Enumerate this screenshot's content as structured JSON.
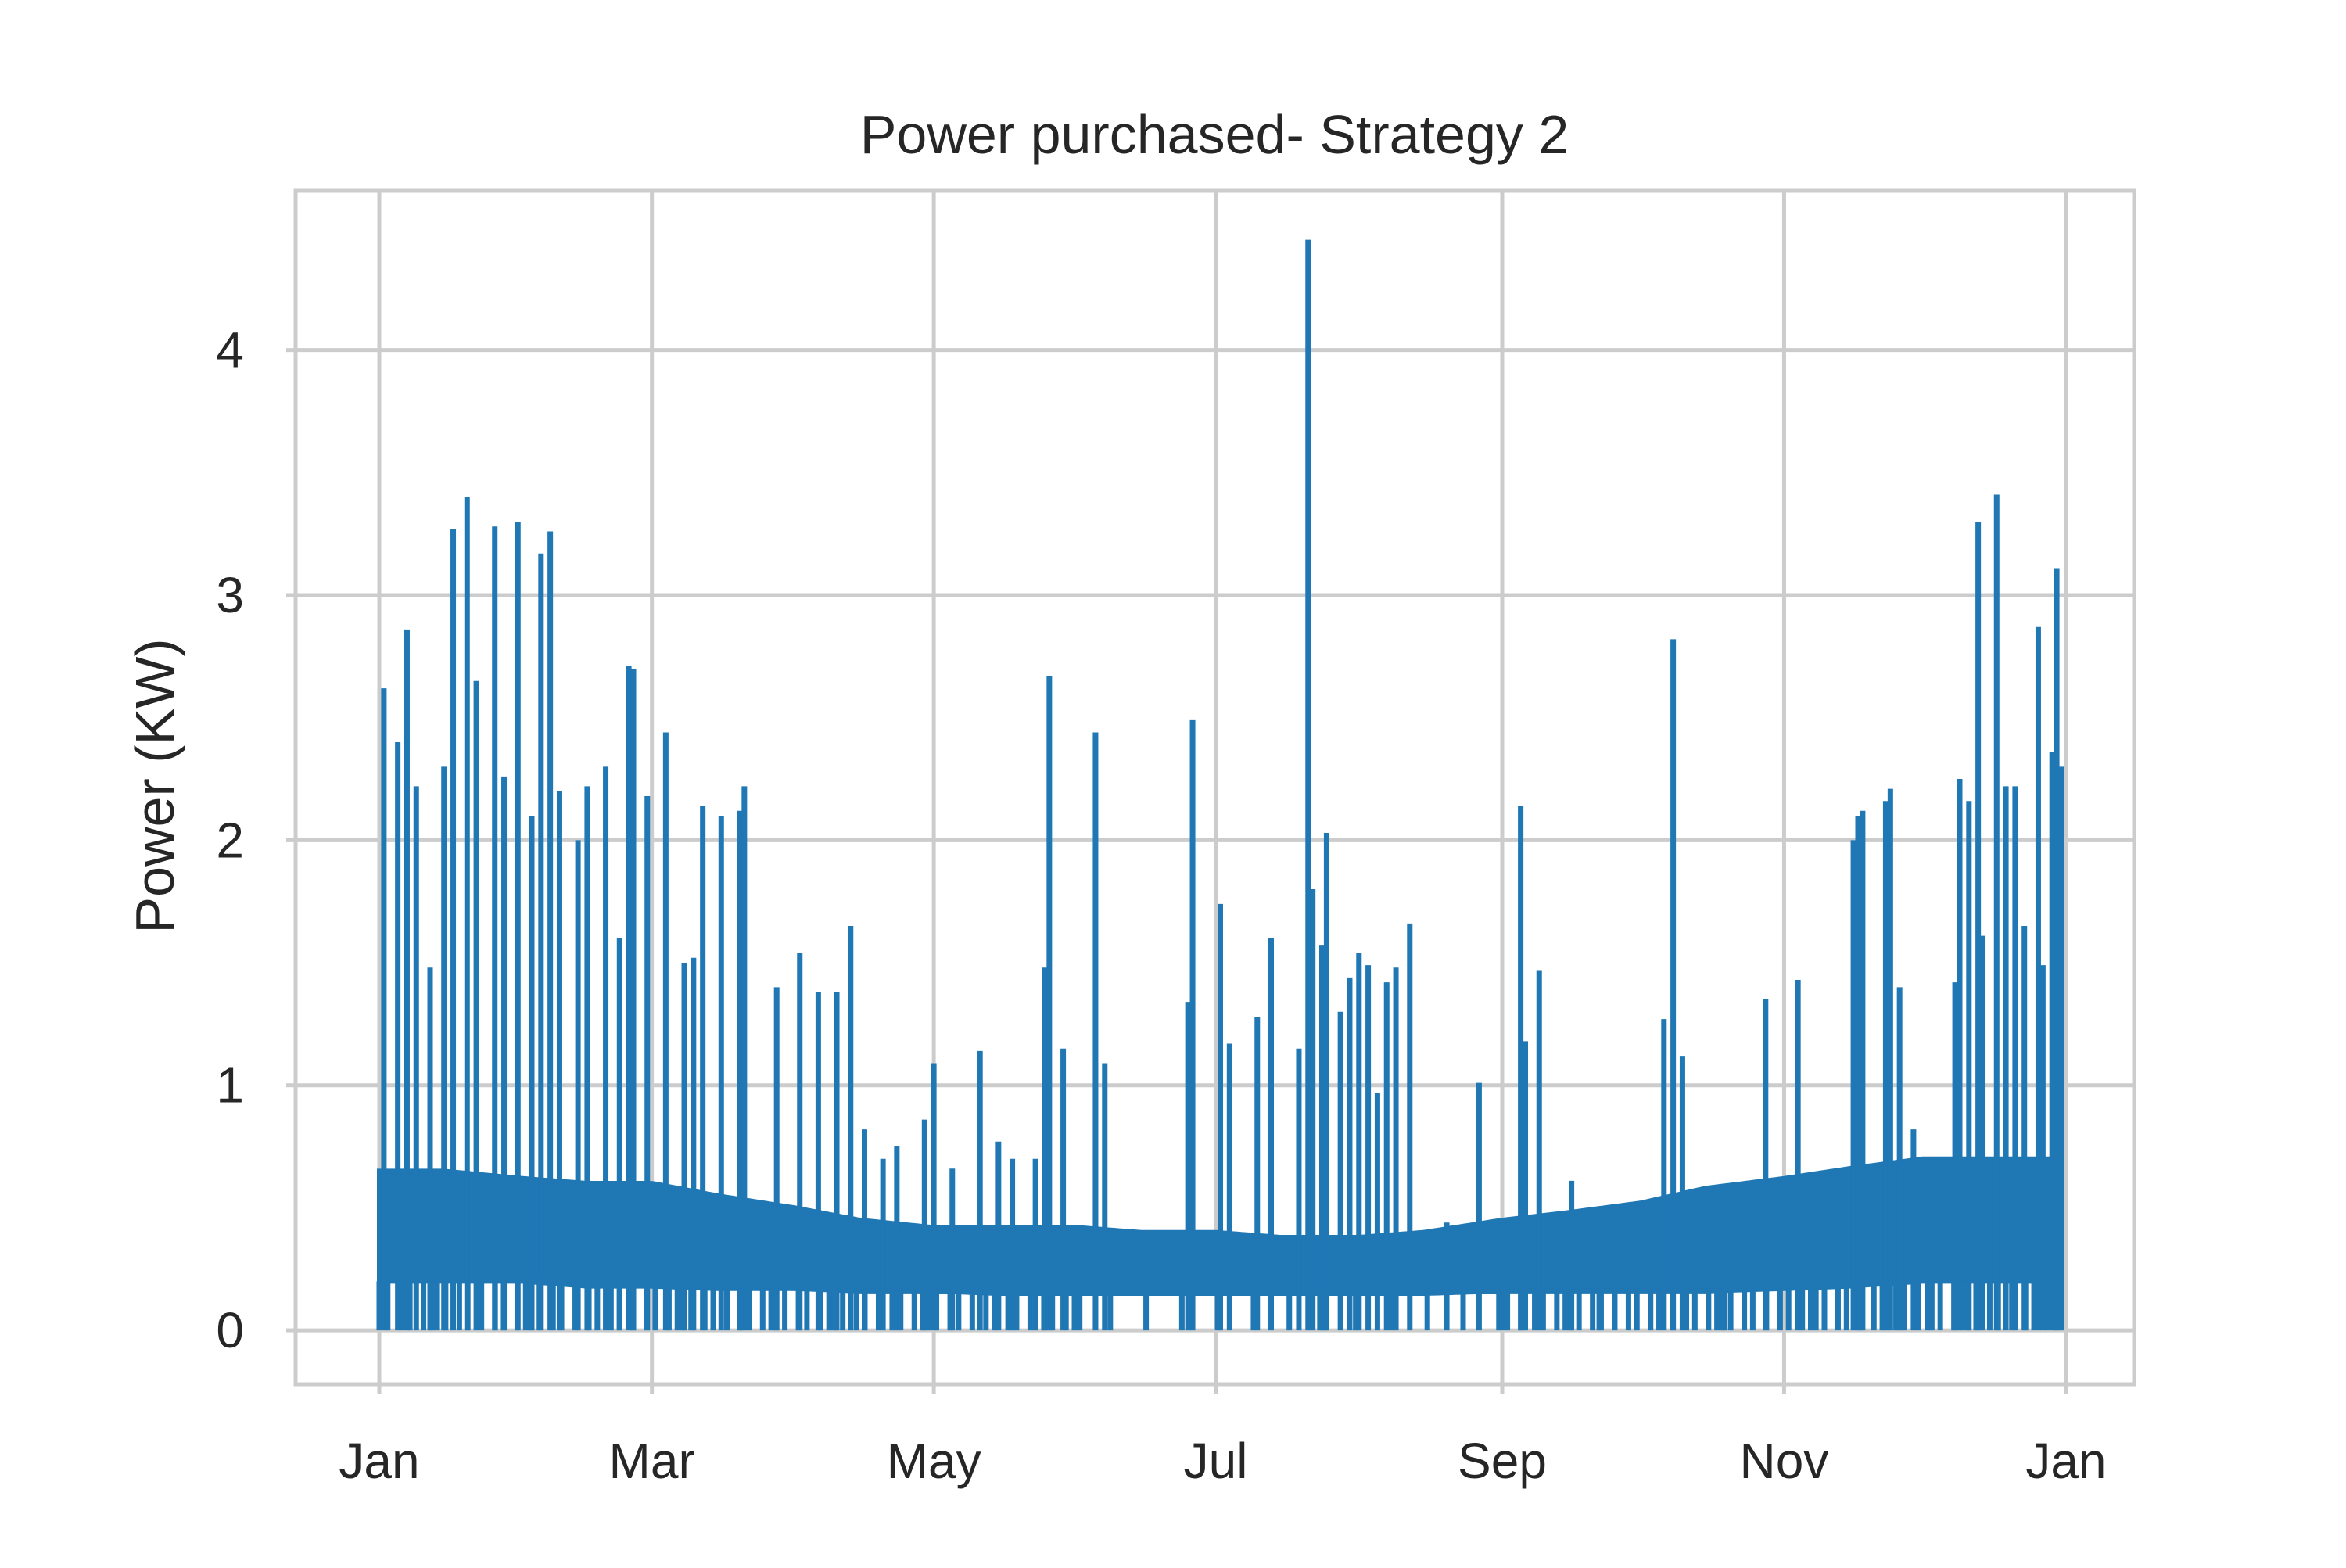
{
  "chart_data": {
    "type": "line",
    "title": "Power purchased- Strategy 2",
    "xlabel": "",
    "ylabel": "Power (KW)",
    "grid": true,
    "x_axis": {
      "type": "date",
      "range": [
        "2019-01-01",
        "2019-12-31"
      ],
      "ticks": [
        {
          "date": "2019-01-01",
          "label": "Jan"
        },
        {
          "date": "2019-03-01",
          "label": "Mar"
        },
        {
          "date": "2019-05-01",
          "label": "May"
        },
        {
          "date": "2019-07-01",
          "label": "Jul"
        },
        {
          "date": "2019-09-01",
          "label": "Sep"
        },
        {
          "date": "2019-11-01",
          "label": "Nov"
        },
        {
          "date": "2020-01-01",
          "label": "Jan"
        }
      ]
    },
    "y_axis": {
      "ylim": [
        -0.22,
        4.65
      ],
      "ticks": [
        0,
        1,
        2,
        3,
        4
      ]
    },
    "series": [
      {
        "color": "#1f77b4",
        "baseline": {
          "dates": [
            "2019-01-01",
            "2019-01-15",
            "2019-02-01",
            "2019-02-15",
            "2019-03-01",
            "2019-03-15",
            "2019-04-01",
            "2019-04-15",
            "2019-05-01",
            "2019-05-15",
            "2019-06-01",
            "2019-06-15",
            "2019-07-01",
            "2019-07-15",
            "2019-08-01",
            "2019-08-15",
            "2019-09-01",
            "2019-09-15",
            "2019-10-01",
            "2019-10-15",
            "2019-11-01",
            "2019-11-15",
            "2019-12-01",
            "2019-12-15",
            "2019-12-31"
          ],
          "low": [
            0.2,
            0.2,
            0.2,
            0.18,
            0.18,
            0.17,
            0.17,
            0.16,
            0.16,
            0.15,
            0.15,
            0.15,
            0.15,
            0.15,
            0.15,
            0.15,
            0.16,
            0.16,
            0.16,
            0.16,
            0.17,
            0.18,
            0.2,
            0.2,
            0.2
          ],
          "high": [
            0.65,
            0.65,
            0.62,
            0.6,
            0.6,
            0.55,
            0.5,
            0.45,
            0.42,
            0.42,
            0.42,
            0.4,
            0.4,
            0.38,
            0.38,
            0.4,
            0.45,
            0.48,
            0.52,
            0.58,
            0.62,
            0.66,
            0.7,
            0.7,
            0.7
          ]
        },
        "peaks": [
          {
            "date": "2019-01-02",
            "value": 2.62
          },
          {
            "date": "2019-01-05",
            "value": 2.4
          },
          {
            "date": "2019-01-07",
            "value": 2.86
          },
          {
            "date": "2019-01-09",
            "value": 2.22
          },
          {
            "date": "2019-01-12",
            "value": 1.48
          },
          {
            "date": "2019-01-15",
            "value": 2.3
          },
          {
            "date": "2019-01-17",
            "value": 3.27
          },
          {
            "date": "2019-01-20",
            "value": 3.4
          },
          {
            "date": "2019-01-22",
            "value": 2.65
          },
          {
            "date": "2019-01-26",
            "value": 3.28
          },
          {
            "date": "2019-01-28",
            "value": 2.26
          },
          {
            "date": "2019-01-31",
            "value": 3.3
          },
          {
            "date": "2019-02-03",
            "value": 2.1
          },
          {
            "date": "2019-02-05",
            "value": 3.17
          },
          {
            "date": "2019-02-07",
            "value": 3.26
          },
          {
            "date": "2019-02-09",
            "value": 2.2
          },
          {
            "date": "2019-02-13",
            "value": 2.0
          },
          {
            "date": "2019-02-15",
            "value": 2.22
          },
          {
            "date": "2019-02-19",
            "value": 2.3
          },
          {
            "date": "2019-02-22",
            "value": 1.6
          },
          {
            "date": "2019-02-24",
            "value": 2.71
          },
          {
            "date": "2019-02-25",
            "value": 2.7
          },
          {
            "date": "2019-02-28",
            "value": 2.18
          },
          {
            "date": "2019-03-04",
            "value": 2.44
          },
          {
            "date": "2019-03-08",
            "value": 1.5
          },
          {
            "date": "2019-03-10",
            "value": 1.52
          },
          {
            "date": "2019-03-12",
            "value": 2.14
          },
          {
            "date": "2019-03-16",
            "value": 2.1
          },
          {
            "date": "2019-03-20",
            "value": 2.12
          },
          {
            "date": "2019-03-21",
            "value": 2.22
          },
          {
            "date": "2019-03-28",
            "value": 1.4
          },
          {
            "date": "2019-04-02",
            "value": 1.54
          },
          {
            "date": "2019-04-06",
            "value": 1.38
          },
          {
            "date": "2019-04-10",
            "value": 1.38
          },
          {
            "date": "2019-04-13",
            "value": 1.65
          },
          {
            "date": "2019-04-16",
            "value": 0.82
          },
          {
            "date": "2019-04-20",
            "value": 0.7
          },
          {
            "date": "2019-04-23",
            "value": 0.75
          },
          {
            "date": "2019-04-29",
            "value": 0.86
          },
          {
            "date": "2019-05-01",
            "value": 1.09
          },
          {
            "date": "2019-05-05",
            "value": 0.66
          },
          {
            "date": "2019-05-11",
            "value": 1.14
          },
          {
            "date": "2019-05-15",
            "value": 0.77
          },
          {
            "date": "2019-05-18",
            "value": 0.7
          },
          {
            "date": "2019-05-23",
            "value": 0.7
          },
          {
            "date": "2019-05-25",
            "value": 1.48
          },
          {
            "date": "2019-05-26",
            "value": 2.67
          },
          {
            "date": "2019-05-29",
            "value": 1.15
          },
          {
            "date": "2019-06-05",
            "value": 2.44
          },
          {
            "date": "2019-06-07",
            "value": 1.09
          },
          {
            "date": "2019-06-25",
            "value": 1.34
          },
          {
            "date": "2019-06-26",
            "value": 2.49
          },
          {
            "date": "2019-07-02",
            "value": 1.74
          },
          {
            "date": "2019-07-04",
            "value": 1.17
          },
          {
            "date": "2019-07-10",
            "value": 1.28
          },
          {
            "date": "2019-07-13",
            "value": 1.6
          },
          {
            "date": "2019-07-19",
            "value": 1.15
          },
          {
            "date": "2019-07-21",
            "value": 4.45
          },
          {
            "date": "2019-07-22",
            "value": 1.8
          },
          {
            "date": "2019-07-24",
            "value": 1.57
          },
          {
            "date": "2019-07-25",
            "value": 2.03
          },
          {
            "date": "2019-07-28",
            "value": 1.3
          },
          {
            "date": "2019-07-30",
            "value": 1.44
          },
          {
            "date": "2019-08-01",
            "value": 1.54
          },
          {
            "date": "2019-08-03",
            "value": 1.49
          },
          {
            "date": "2019-08-05",
            "value": 0.97
          },
          {
            "date": "2019-08-07",
            "value": 1.42
          },
          {
            "date": "2019-08-09",
            "value": 1.48
          },
          {
            "date": "2019-08-12",
            "value": 1.66
          },
          {
            "date": "2019-08-20",
            "value": 0.44
          },
          {
            "date": "2019-08-27",
            "value": 1.01
          },
          {
            "date": "2019-09-01",
            "value": 0.38
          },
          {
            "date": "2019-09-05",
            "value": 2.14
          },
          {
            "date": "2019-09-06",
            "value": 1.18
          },
          {
            "date": "2019-09-09",
            "value": 1.47
          },
          {
            "date": "2019-09-16",
            "value": 0.61
          },
          {
            "date": "2019-09-22",
            "value": 0.42
          },
          {
            "date": "2019-10-06",
            "value": 1.27
          },
          {
            "date": "2019-10-08",
            "value": 2.82
          },
          {
            "date": "2019-10-10",
            "value": 1.12
          },
          {
            "date": "2019-10-19",
            "value": 0.46
          },
          {
            "date": "2019-10-28",
            "value": 1.35
          },
          {
            "date": "2019-11-04",
            "value": 1.43
          },
          {
            "date": "2019-11-16",
            "value": 2.0
          },
          {
            "date": "2019-11-17",
            "value": 2.1
          },
          {
            "date": "2019-11-18",
            "value": 2.12
          },
          {
            "date": "2019-11-23",
            "value": 2.16
          },
          {
            "date": "2019-11-24",
            "value": 2.21
          },
          {
            "date": "2019-11-26",
            "value": 1.4
          },
          {
            "date": "2019-11-29",
            "value": 0.82
          },
          {
            "date": "2019-12-02",
            "value": 0.65
          },
          {
            "date": "2019-12-08",
            "value": 1.42
          },
          {
            "date": "2019-12-09",
            "value": 2.25
          },
          {
            "date": "2019-12-11",
            "value": 2.16
          },
          {
            "date": "2019-12-13",
            "value": 3.3
          },
          {
            "date": "2019-12-14",
            "value": 1.61
          },
          {
            "date": "2019-12-17",
            "value": 3.41
          },
          {
            "date": "2019-12-19",
            "value": 2.22
          },
          {
            "date": "2019-12-21",
            "value": 2.22
          },
          {
            "date": "2019-12-23",
            "value": 1.65
          },
          {
            "date": "2019-12-26",
            "value": 2.87
          },
          {
            "date": "2019-12-27",
            "value": 1.49
          },
          {
            "date": "2019-12-29",
            "value": 2.36
          },
          {
            "date": "2019-12-30",
            "value": 3.11
          },
          {
            "date": "2019-12-31",
            "value": 2.3
          }
        ]
      }
    ]
  }
}
